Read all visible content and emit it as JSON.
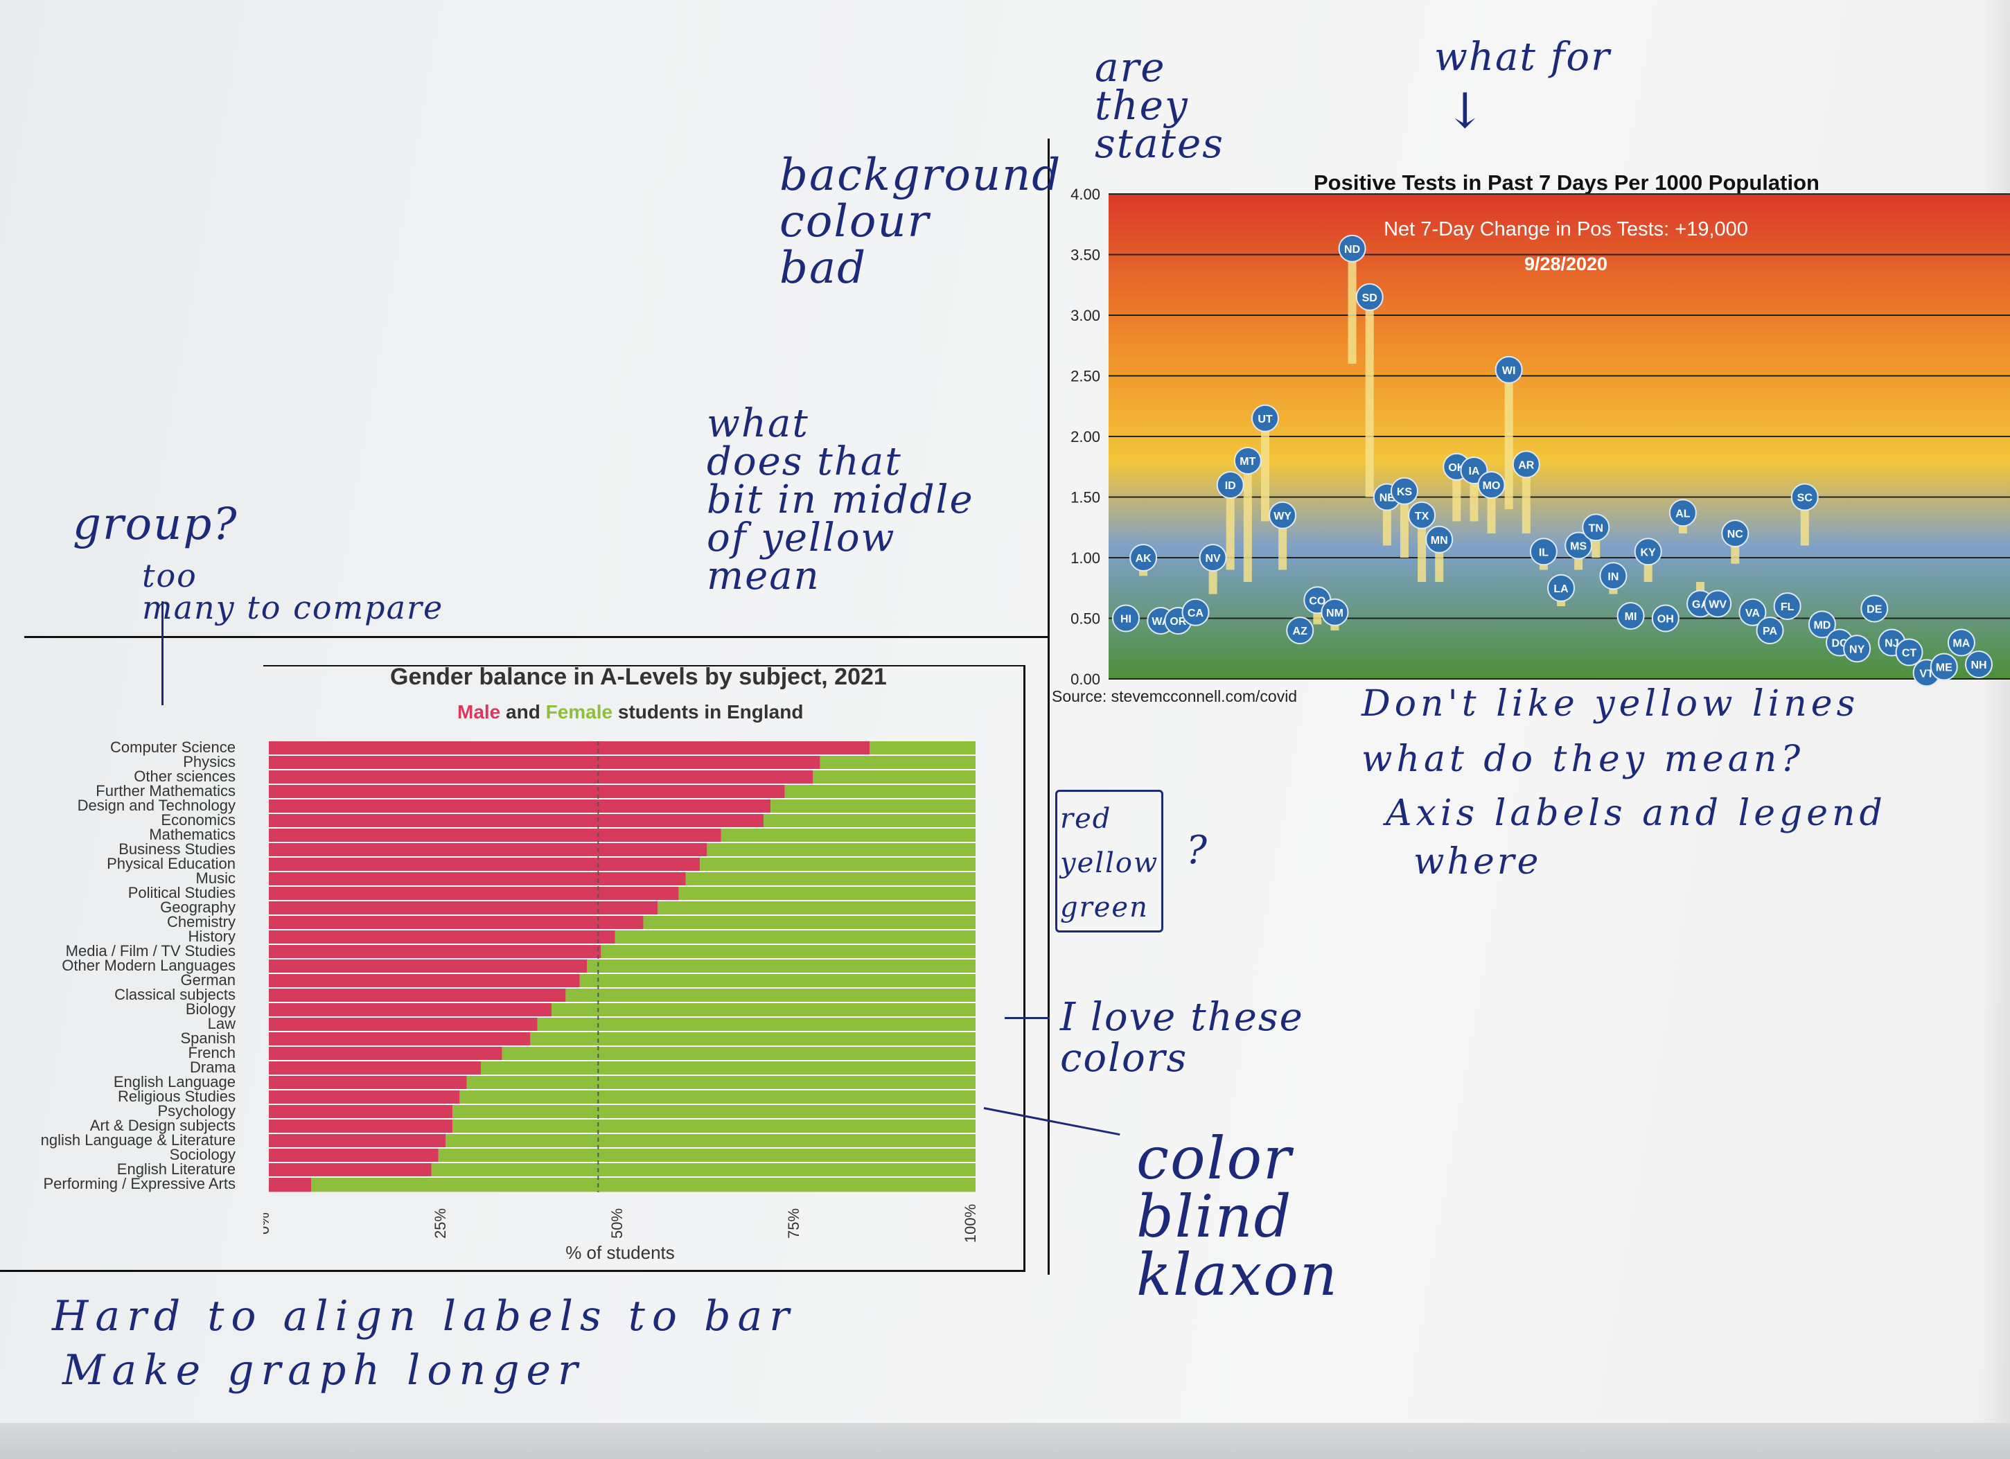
{
  "handwriting": {
    "are_they_states": "are\nthey\nstates",
    "what_for": "what for",
    "background_colour_bad": "background\ncolour\nbad",
    "what_does_that_bit": "what\ndoes that\nbit in middle\nof yellow\nmean",
    "group": "group?",
    "too_many": "too\nmany to compare",
    "dont_like": "Don't like yellow lines",
    "what_do_they_mean": "what do they mean?",
    "axis_labels": "Axis labels and legend",
    "where": "where",
    "rgy_box": "red\nyellow\ngreen",
    "question": "?",
    "i_love": "I love these\ncolors",
    "color_blind": "color\nblind\nklaxon",
    "hard_to_align": "Hard to align labels to bar",
    "make_graph_longer": "Make graph longer"
  },
  "chart_data": [
    {
      "type": "scatter",
      "title": "Positive Tests in Past 7 Days Per 1000 Population",
      "annotation_line1": "Net 7-Day Change in Pos Tests: +19,000",
      "annotation_line2": "9/28/2020",
      "source": "Source: stevemcconnell.com/covid",
      "ylim": [
        0,
        4
      ],
      "yticks": [
        "0.00",
        "0.50",
        "1.00",
        "1.50",
        "2.00",
        "2.50",
        "3.00",
        "3.50",
        "4.00"
      ],
      "background_bands": [
        "#d93a2a",
        "#ef8a2a",
        "#f3c53a",
        "#7fa0c8",
        "#4f8f3a"
      ],
      "point_color": "#2e6fb2",
      "trail_color": "#f5e08a",
      "points": [
        {
          "label": "HI",
          "x": 0,
          "y": 0.5,
          "prev": 0.42
        },
        {
          "label": "AK",
          "x": 1,
          "y": 1.0,
          "prev": 0.85
        },
        {
          "label": "WA",
          "x": 2,
          "y": 0.48,
          "prev": 0.38
        },
        {
          "label": "OR",
          "x": 3,
          "y": 0.48,
          "prev": 0.42
        },
        {
          "label": "CA",
          "x": 4,
          "y": 0.55,
          "prev": 0.45
        },
        {
          "label": "NV",
          "x": 5,
          "y": 1.0,
          "prev": 0.7
        },
        {
          "label": "ID",
          "x": 6,
          "y": 1.6,
          "prev": 0.9
        },
        {
          "label": "MT",
          "x": 7,
          "y": 1.8,
          "prev": 0.8
        },
        {
          "label": "UT",
          "x": 8,
          "y": 2.15,
          "prev": 1.3
        },
        {
          "label": "WY",
          "x": 9,
          "y": 1.35,
          "prev": 0.9
        },
        {
          "label": "AZ",
          "x": 10,
          "y": 0.4,
          "prev": 0.3
        },
        {
          "label": "CO",
          "x": 11,
          "y": 0.65,
          "prev": 0.45
        },
        {
          "label": "NM",
          "x": 12,
          "y": 0.55,
          "prev": 0.4
        },
        {
          "label": "ND",
          "x": 13,
          "y": 3.55,
          "prev": 2.6
        },
        {
          "label": "SD",
          "x": 14,
          "y": 3.15,
          "prev": 1.5
        },
        {
          "label": "NE",
          "x": 15,
          "y": 1.5,
          "prev": 1.1
        },
        {
          "label": "KS",
          "x": 16,
          "y": 1.55,
          "prev": 1.0
        },
        {
          "label": "TX",
          "x": 17,
          "y": 1.35,
          "prev": 0.8
        },
        {
          "label": "MN",
          "x": 18,
          "y": 1.15,
          "prev": 0.8
        },
        {
          "label": "OK",
          "x": 19,
          "y": 1.75,
          "prev": 1.3
        },
        {
          "label": "IA",
          "x": 20,
          "y": 1.72,
          "prev": 1.3
        },
        {
          "label": "MO",
          "x": 21,
          "y": 1.6,
          "prev": 1.2
        },
        {
          "label": "WI",
          "x": 22,
          "y": 2.55,
          "prev": 1.4
        },
        {
          "label": "AR",
          "x": 23,
          "y": 1.77,
          "prev": 1.2
        },
        {
          "label": "IL",
          "x": 24,
          "y": 1.05,
          "prev": 0.9
        },
        {
          "label": "LA",
          "x": 25,
          "y": 0.75,
          "prev": 0.6
        },
        {
          "label": "MS",
          "x": 26,
          "y": 1.1,
          "prev": 0.9
        },
        {
          "label": "TN",
          "x": 27,
          "y": 1.25,
          "prev": 1.0
        },
        {
          "label": "IN",
          "x": 28,
          "y": 0.85,
          "prev": 0.7
        },
        {
          "label": "MI",
          "x": 29,
          "y": 0.52,
          "prev": 0.45
        },
        {
          "label": "KY",
          "x": 30,
          "y": 1.05,
          "prev": 0.8
        },
        {
          "label": "OH",
          "x": 31,
          "y": 0.5,
          "prev": 0.45
        },
        {
          "label": "AL",
          "x": 32,
          "y": 1.37,
          "prev": 1.2
        },
        {
          "label": "GA",
          "x": 33,
          "y": 0.62,
          "prev": 0.8
        },
        {
          "label": "WV",
          "x": 34,
          "y": 0.62,
          "prev": 0.55
        },
        {
          "label": "NC",
          "x": 35,
          "y": 1.2,
          "prev": 0.95
        },
        {
          "label": "VA",
          "x": 36,
          "y": 0.55,
          "prev": 0.5
        },
        {
          "label": "PA",
          "x": 37,
          "y": 0.4,
          "prev": 0.35
        },
        {
          "label": "FL",
          "x": 38,
          "y": 0.6,
          "prev": 0.55
        },
        {
          "label": "SC",
          "x": 39,
          "y": 1.5,
          "prev": 1.1
        },
        {
          "label": "MD",
          "x": 40,
          "y": 0.45,
          "prev": 0.4
        },
        {
          "label": "DC",
          "x": 41,
          "y": 0.3,
          "prev": 0.28
        },
        {
          "label": "NY",
          "x": 42,
          "y": 0.25,
          "prev": 0.22
        },
        {
          "label": "DE",
          "x": 43,
          "y": 0.58,
          "prev": 0.5
        },
        {
          "label": "NJ",
          "x": 44,
          "y": 0.3,
          "prev": 0.25
        },
        {
          "label": "CT",
          "x": 45,
          "y": 0.22,
          "prev": 0.18
        },
        {
          "label": "VT",
          "x": 46,
          "y": 0.05,
          "prev": 0.04
        },
        {
          "label": "ME",
          "x": 47,
          "y": 0.1,
          "prev": 0.08
        },
        {
          "label": "MA",
          "x": 48,
          "y": 0.3,
          "prev": 0.25
        },
        {
          "label": "NH",
          "x": 49,
          "y": 0.12,
          "prev": 0.1
        }
      ]
    },
    {
      "type": "bar",
      "title": "Gender balance in A-Levels by subject, 2021",
      "subtitle_male": "Male",
      "subtitle_and": "and",
      "subtitle_female": "Female",
      "subtitle_rest": "students in England",
      "xlabel": "% of students",
      "xticks": [
        "0%",
        "25%",
        "50%",
        "75%",
        "100%"
      ],
      "colors": {
        "male": "#d63a5c",
        "female": "#8ebf3c"
      },
      "categories": [
        "Computer Science",
        "Physics",
        "Other sciences",
        "Further Mathematics",
        "Design and Technology",
        "Economics",
        "Mathematics",
        "Business Studies",
        "Physical Education",
        "Music",
        "Political Studies",
        "Geography",
        "Chemistry",
        "History",
        "Media / Film / TV Studies",
        "Other Modern Languages",
        "German",
        "Classical subjects",
        "Biology",
        "Law",
        "Spanish",
        "French",
        "Drama",
        "English Language",
        "Religious Studies",
        "Psychology",
        "Art & Design subjects",
        "nglish Language & Literature",
        "Sociology",
        "English Literature",
        "Performing / Expressive Arts"
      ],
      "male_pct": [
        85,
        78,
        77,
        73,
        71,
        70,
        64,
        62,
        61,
        59,
        58,
        55,
        53,
        49,
        47,
        45,
        44,
        42,
        40,
        38,
        37,
        33,
        30,
        28,
        27,
        26,
        26,
        25,
        24,
        23,
        6
      ]
    }
  ]
}
